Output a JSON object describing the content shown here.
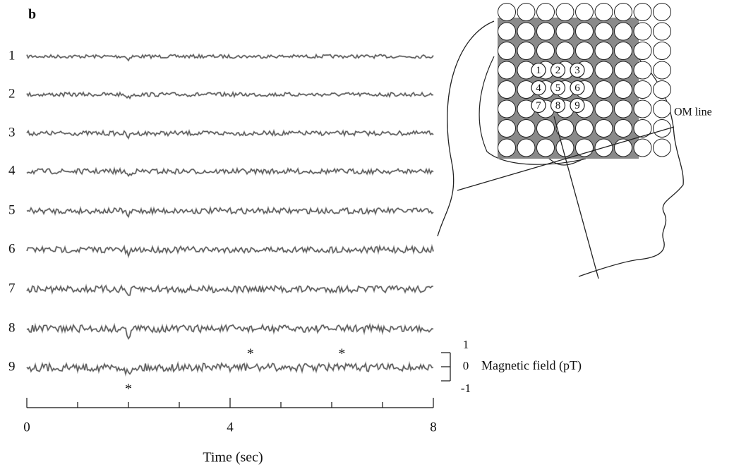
{
  "panel_label": "b",
  "channels": [
    "1",
    "2",
    "3",
    "4",
    "5",
    "6",
    "7",
    "8",
    "9"
  ],
  "time_axis": {
    "label": "Time (sec)",
    "lim": [
      0,
      8
    ],
    "ticks": [
      0,
      4,
      8
    ],
    "minor_ticks": [
      1,
      2,
      3,
      5,
      6,
      7
    ]
  },
  "scale": {
    "label": "Magnetic field (pT)",
    "ticks": [
      1,
      0,
      -1
    ]
  },
  "asterisks": [
    {
      "text": "*",
      "time": 2.0,
      "side": "below"
    },
    {
      "text": "*",
      "time": 4.4,
      "side": "above"
    },
    {
      "text": "*",
      "time": 6.2,
      "side": "above"
    }
  ],
  "sensors": [
    "1",
    "2",
    "3",
    "4",
    "5",
    "6",
    "7",
    "8",
    "9"
  ],
  "om_line": "OM line"
}
